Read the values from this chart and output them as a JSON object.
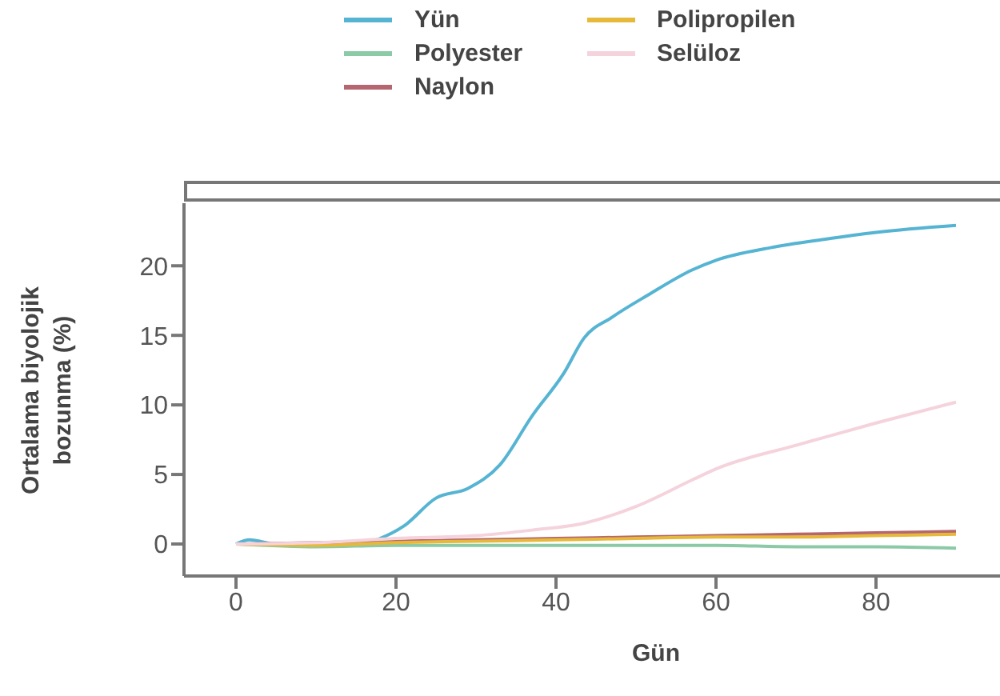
{
  "chart_data": {
    "type": "line",
    "xlabel": "Gün",
    "ylabel": "Ortalama biyolojik bozunma (%)",
    "xlim": [
      -6.5,
      95.5
    ],
    "xticks": [
      0,
      20,
      40,
      60,
      80
    ],
    "ylim": [
      -2.3,
      24.5
    ],
    "yticks": [
      0,
      5,
      10,
      15,
      20
    ],
    "legend": "top",
    "grid": false,
    "marker": "none",
    "line_style": "solid",
    "series": [
      {
        "name": "Yün",
        "color": "#56b4d3",
        "x": [
          0,
          1.7,
          5,
          8.3,
          13,
          17,
          18,
          21,
          25,
          29,
          33,
          37,
          41,
          43.5,
          47,
          51.5,
          57,
          60,
          66.8,
          73.5,
          80,
          90
        ],
        "values": [
          0,
          0.3,
          0,
          0,
          0,
          0.2,
          0.4,
          1.3,
          3.3,
          4.0,
          5.7,
          9.2,
          12.3,
          14.8,
          16.3,
          17.9,
          19.7,
          20.4,
          21.3,
          21.9,
          22.4,
          22.9
        ]
      },
      {
        "name": "Polyester",
        "color": "#8cc9a6",
        "x": [
          0,
          10,
          20,
          30,
          40,
          50,
          60,
          70,
          80,
          90
        ],
        "values": [
          0,
          -0.2,
          -0.1,
          -0.1,
          -0.1,
          -0.1,
          -0.1,
          -0.2,
          -0.2,
          -0.3
        ]
      },
      {
        "name": "Naylon",
        "color": "#b5666e",
        "x": [
          0,
          10,
          20,
          30,
          40,
          50,
          60,
          70,
          80,
          90
        ],
        "values": [
          0,
          0.1,
          0.2,
          0.3,
          0.4,
          0.5,
          0.6,
          0.7,
          0.8,
          0.9
        ]
      },
      {
        "name": "Polipropilen",
        "color": "#e6b93a",
        "x": [
          0,
          10,
          20,
          30,
          40,
          50,
          60,
          70,
          80,
          90
        ],
        "values": [
          0,
          -0.1,
          0.1,
          0.2,
          0.3,
          0.4,
          0.5,
          0.5,
          0.6,
          0.7
        ]
      },
      {
        "name": "Selüloz",
        "color": "#f5d3dc",
        "x": [
          0,
          10,
          20,
          30,
          37,
          43.5,
          50,
          57,
          60,
          70,
          80,
          90
        ],
        "values": [
          0,
          0.1,
          0.4,
          0.6,
          1.0,
          1.5,
          2.7,
          4.6,
          5.4,
          7.1,
          8.7,
          10.2
        ]
      }
    ]
  }
}
